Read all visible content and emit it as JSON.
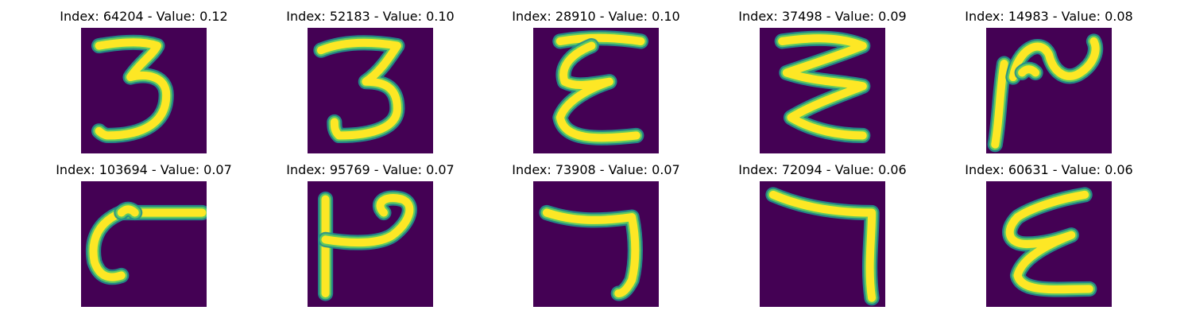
{
  "colors": {
    "background": "#440154",
    "stroke_core": "#fde725",
    "stroke_edge": "#21918c",
    "stroke_mid": "#5ec962"
  },
  "panels": [
    {
      "title": "Index: 64204 - Value: 0.12",
      "glyph": "three-a"
    },
    {
      "title": "Index: 52183 - Value: 0.10",
      "glyph": "three-b"
    },
    {
      "title": "Index: 28910 - Value: 0.10",
      "glyph": "epsilon-a"
    },
    {
      "title": "Index: 37498 - Value: 0.09",
      "glyph": "zigzag"
    },
    {
      "title": "Index: 14983 - Value: 0.08",
      "glyph": "curl"
    },
    {
      "title": "Index: 103694 - Value: 0.07",
      "glyph": "hook"
    },
    {
      "title": "Index: 95769 - Value: 0.07",
      "glyph": "p-shape"
    },
    {
      "title": "Index: 73908 - Value: 0.07",
      "glyph": "seven-a"
    },
    {
      "title": "Index: 72094 - Value: 0.06",
      "glyph": "seven-b"
    },
    {
      "title": "Index: 60631 - Value: 0.06",
      "glyph": "epsilon-b"
    }
  ]
}
